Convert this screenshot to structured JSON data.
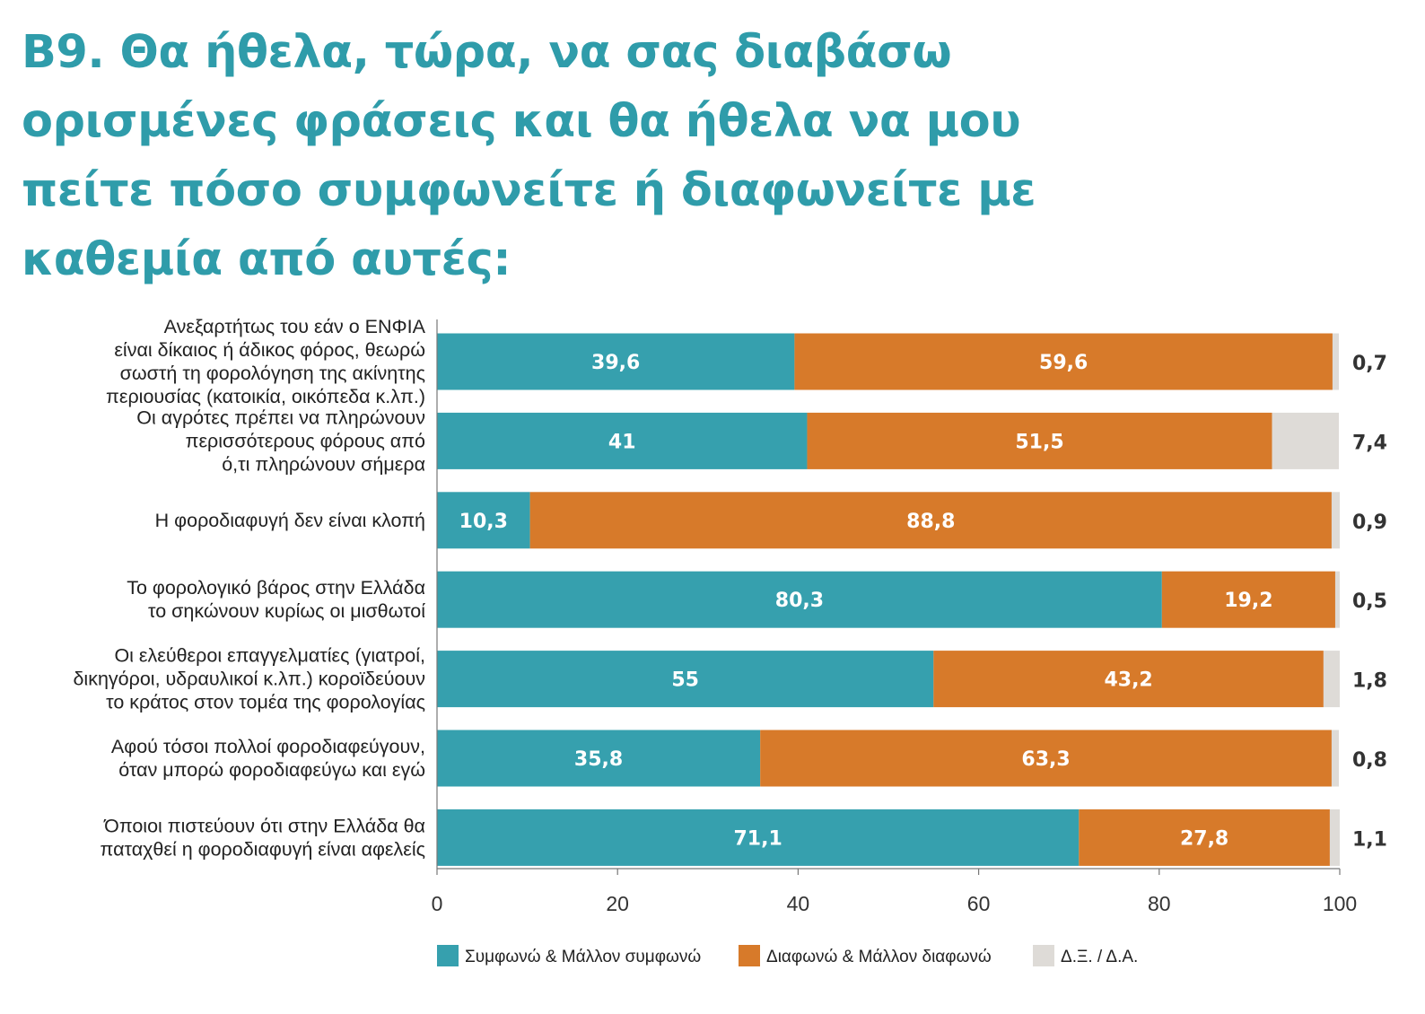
{
  "title_lines": [
    "B9. Θα ήθελα, τώρα, να σας διαβάσω",
    "ορισμένες φράσεις και θα ήθελα να μου",
    "πείτε πόσο συμφωνείτε ή διαφωνείτε με",
    "καθεμία από αυτές:"
  ],
  "colors": {
    "agree": "#36a0ae",
    "disagree": "#d77a2a",
    "dk": "#dedbd7",
    "title": "#2f9caa"
  },
  "chart_data": {
    "type": "bar",
    "orientation": "horizontal",
    "stacked": true,
    "categories": [
      [
        "Ανεξαρτήτως του εάν ο ΕΝΦΙΑ",
        "είναι δίκαιος ή άδικος φόρος, θεωρώ",
        "σωστή τη φορολόγηση της ακίνητης",
        "περιουσίας (κατοικία, οικόπεδα κ.λπ.)"
      ],
      [
        "Οι αγρότες πρέπει να πληρώνουν",
        "περισσότερους φόρους από",
        "ό,τι πληρώνουν σήμερα"
      ],
      [
        "Η φοροδιαφυγή δεν είναι κλοπή"
      ],
      [
        "Το φορολογικό βάρος στην Ελλάδα",
        "το σηκώνουν κυρίως οι μισθωτοί"
      ],
      [
        "Οι ελεύθεροι επαγγελματίες (γιατροί,",
        "δικηγόροι, υδραυλικοί κ.λπ.) κοροϊδεύουν",
        "το κράτος στον τομέα της φορολογίας"
      ],
      [
        "Αφού τόσοι πολλοί φοροδιαφεύγουν,",
        "όταν μπορώ φοροδιαφεύγω και εγώ"
      ],
      [
        "Όποιοι πιστεύουν ότι στην Ελλάδα θα",
        "παταχθεί η φοροδιαφυγή είναι αφελείς"
      ]
    ],
    "series": [
      {
        "name": "Συμφωνώ & Μάλλον συμφωνώ",
        "values": [
          39.6,
          41,
          10.3,
          80.3,
          55,
          35.8,
          71.1
        ],
        "labels": [
          "39,6",
          "41",
          "10,3",
          "80,3",
          "55",
          "35,8",
          "71,1"
        ]
      },
      {
        "name": "Διαφωνώ & Μάλλον διαφωνώ",
        "values": [
          59.6,
          51.5,
          88.8,
          19.2,
          43.2,
          63.3,
          27.8
        ],
        "labels": [
          "59,6",
          "51,5",
          "88,8",
          "19,2",
          "43,2",
          "63,3",
          "27,8"
        ]
      },
      {
        "name": "Δ.Ξ. / Δ.Α.",
        "values": [
          0.7,
          7.4,
          0.9,
          0.5,
          1.8,
          0.8,
          1.1
        ],
        "labels": [
          "0,7",
          "7,4",
          "0,9",
          "0,5",
          "1,8",
          "0,8",
          "1,1"
        ]
      }
    ],
    "xticks": [
      "0",
      "20",
      "40",
      "60",
      "80",
      "100"
    ],
    "xlim": [
      0,
      100
    ],
    "legend_position": "bottom",
    "grid": false
  }
}
